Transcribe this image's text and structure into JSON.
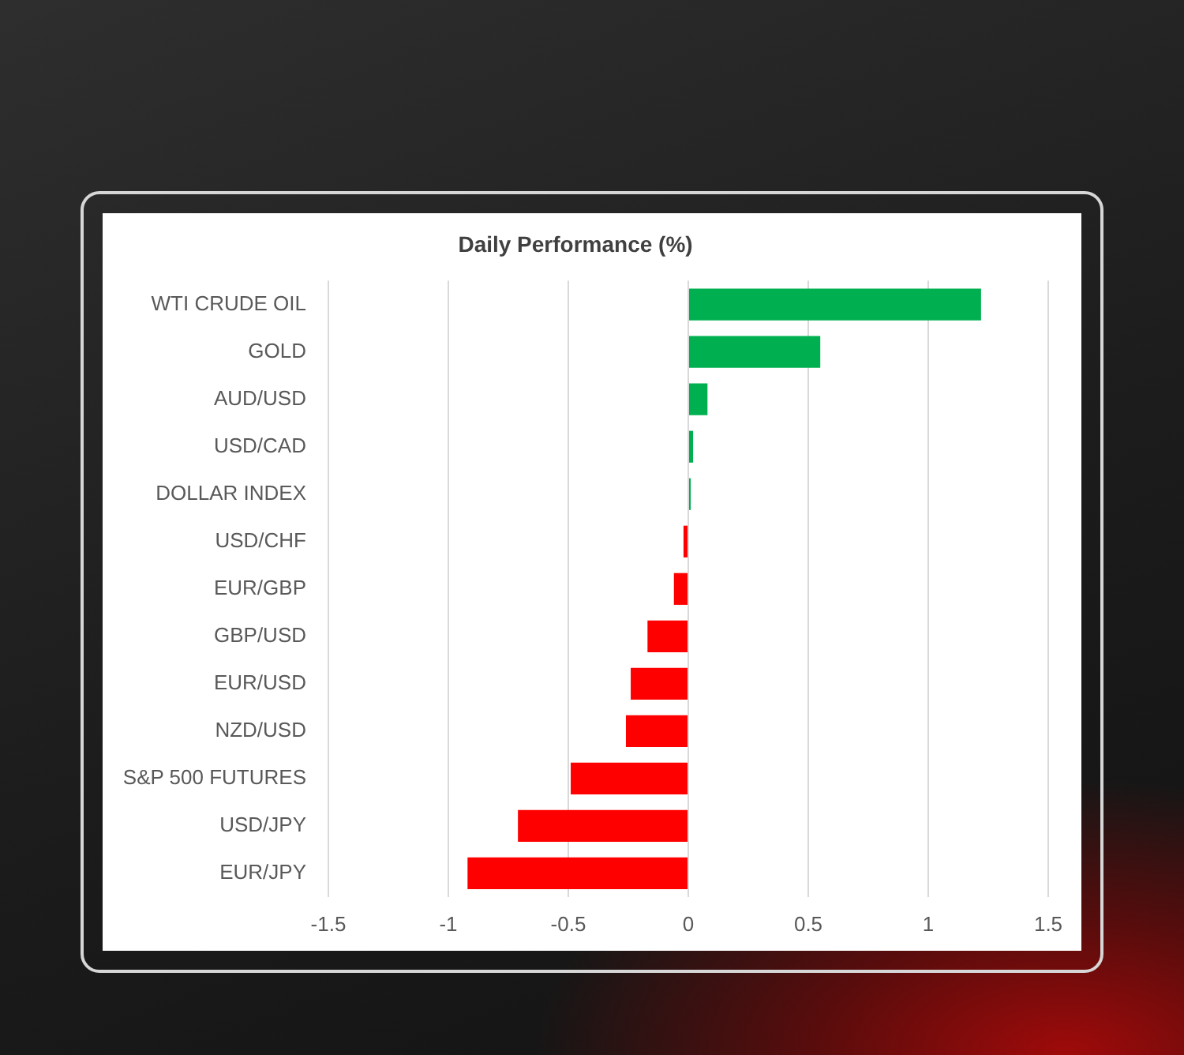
{
  "chart_data": {
    "type": "bar",
    "orientation": "horizontal",
    "title": "Daily Performance (%)",
    "categories": [
      "WTI CRUDE OIL",
      "GOLD",
      "AUD/USD",
      "USD/CAD",
      "DOLLAR INDEX",
      "USD/CHF",
      "EUR/GBP",
      "GBP/USD",
      "EUR/USD",
      "NZD/USD",
      "S&P 500 FUTURES",
      "USD/JPY",
      "EUR/JPY"
    ],
    "values": [
      1.22,
      0.55,
      0.08,
      0.02,
      0.01,
      -0.02,
      -0.06,
      -0.17,
      -0.24,
      -0.26,
      -0.49,
      -0.71,
      -0.92
    ],
    "colors": [
      "#00b050",
      "#00b050",
      "#00b050",
      "#00b050",
      "#00b050",
      "#ff0000",
      "#ff0000",
      "#ff0000",
      "#ff0000",
      "#ff0000",
      "#ff0000",
      "#ff0000",
      "#ff0000"
    ],
    "xlim": [
      -1.5,
      1.5
    ],
    "xticks": [
      -1.5,
      -1,
      -0.5,
      0,
      0.5,
      1,
      1.5
    ],
    "grid": "x"
  }
}
